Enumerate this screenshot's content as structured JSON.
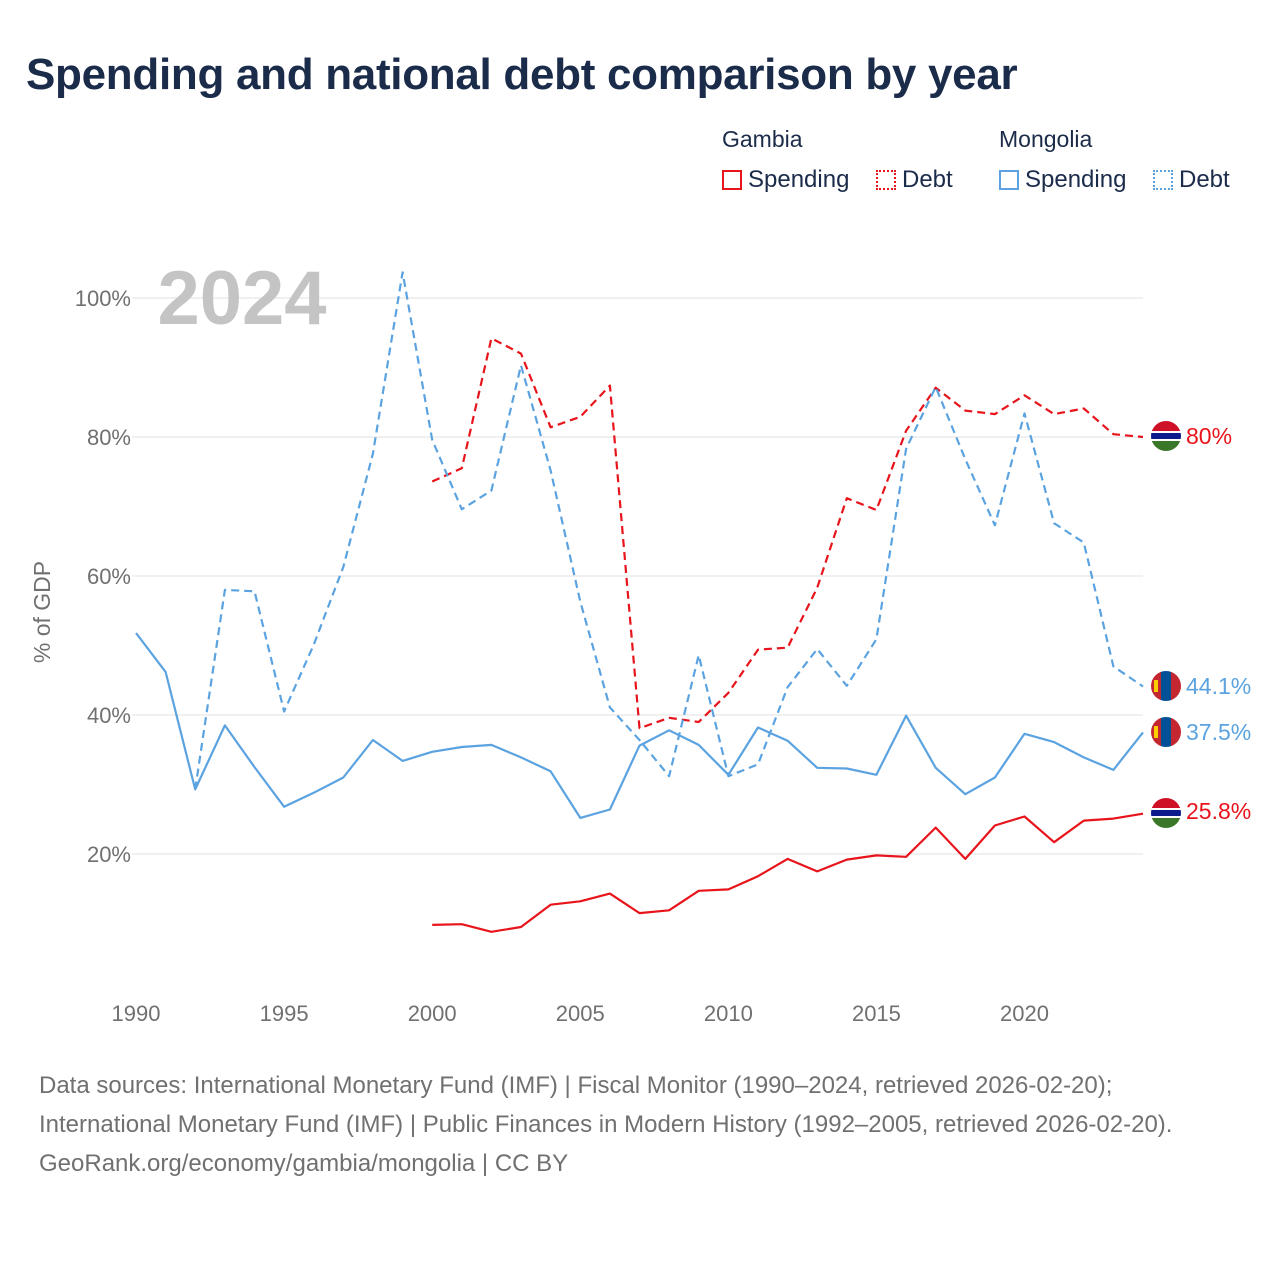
{
  "title": "Spending and national debt comparison by year",
  "legend": {
    "groups": [
      {
        "name": "Gambia",
        "items": [
          {
            "label": "Spending",
            "style": "solid",
            "color": "#e8141b"
          },
          {
            "label": "Debt",
            "style": "dotted",
            "color": "#e8141b"
          }
        ]
      },
      {
        "name": "Mongolia",
        "items": [
          {
            "label": "Spending",
            "style": "solid",
            "color": "#5ba3e0"
          },
          {
            "label": "Debt",
            "style": "dotted",
            "color": "#5ba3e0"
          }
        ]
      }
    ]
  },
  "colors": {
    "gambia": "#e8141b",
    "mongolia": "#5ba3e0",
    "grid": "#e6e6e6",
    "axis_text": "#707070",
    "year_watermark": "#c4c4c4"
  },
  "chart_data": {
    "type": "line",
    "year_label": "2024",
    "ylabel": "% of GDP",
    "xlim": [
      1990,
      2024
    ],
    "ylim": [
      0,
      105
    ],
    "yticks": [
      20,
      40,
      60,
      80,
      100
    ],
    "ytick_labels": [
      "20%",
      "40%",
      "60%",
      "80%",
      "100%"
    ],
    "xticks": [
      1990,
      1995,
      2000,
      2005,
      2010,
      2015,
      2020
    ],
    "xtick_labels": [
      "1990",
      "1995",
      "2000",
      "2005",
      "2010",
      "2015",
      "2020"
    ],
    "series": [
      {
        "name": "Gambia Spending",
        "country": "Gambia",
        "metric": "Spending",
        "color": "#e8141b",
        "dashed": false,
        "end_label": "25.8%",
        "x": [
          2000,
          2001,
          2002,
          2003,
          2004,
          2005,
          2006,
          2007,
          2008,
          2009,
          2010,
          2011,
          2012,
          2013,
          2014,
          2015,
          2016,
          2017,
          2018,
          2019,
          2020,
          2021,
          2022,
          2023,
          2024
        ],
        "values": [
          9.8,
          9.9,
          8.8,
          9.5,
          12.7,
          13.2,
          14.3,
          11.5,
          11.9,
          14.7,
          14.9,
          16.8,
          19.3,
          17.5,
          19.2,
          19.8,
          19.6,
          23.8,
          19.3,
          24.1,
          25.4,
          21.7,
          24.8,
          25.1,
          25.8
        ]
      },
      {
        "name": "Gambia Debt",
        "country": "Gambia",
        "metric": "Debt",
        "color": "#e8141b",
        "dashed": true,
        "end_label": "80%",
        "x": [
          2000,
          2001,
          2002,
          2003,
          2004,
          2005,
          2006,
          2007,
          2008,
          2009,
          2010,
          2011,
          2012,
          2013,
          2014,
          2015,
          2016,
          2017,
          2018,
          2019,
          2020,
          2021,
          2022,
          2023,
          2024
        ],
        "values": [
          73.6,
          75.5,
          94.2,
          92.0,
          81.4,
          82.9,
          87.4,
          38.1,
          39.6,
          39.0,
          43.2,
          49.4,
          49.7,
          58.3,
          71.2,
          69.5,
          80.9,
          87.1,
          83.8,
          83.3,
          86.0,
          83.3,
          84.1,
          80.4,
          80.0
        ]
      },
      {
        "name": "Mongolia Spending",
        "country": "Mongolia",
        "metric": "Spending",
        "color": "#5ba3e0",
        "dashed": false,
        "end_label": "37.5%",
        "x": [
          1990,
          1991,
          1992,
          1993,
          1994,
          1995,
          1996,
          1997,
          1998,
          1999,
          2000,
          2001,
          2002,
          2003,
          2004,
          2005,
          2006,
          2007,
          2008,
          2009,
          2010,
          2011,
          2012,
          2013,
          2014,
          2015,
          2016,
          2017,
          2018,
          2019,
          2020,
          2021,
          2022,
          2023,
          2024
        ],
        "values": [
          51.8,
          46.2,
          29.3,
          38.5,
          32.5,
          26.8,
          28.8,
          31.0,
          36.4,
          33.4,
          34.7,
          35.4,
          35.7,
          33.9,
          31.9,
          25.2,
          26.4,
          35.6,
          37.8,
          35.7,
          31.4,
          38.2,
          36.3,
          32.4,
          32.3,
          31.4,
          39.9,
          32.4,
          28.6,
          31.0,
          37.3,
          36.1,
          33.9,
          32.1,
          37.5
        ]
      },
      {
        "name": "Mongolia Debt",
        "country": "Mongolia",
        "metric": "Debt",
        "color": "#5ba3e0",
        "dashed": true,
        "end_label": "44.1%",
        "x": [
          1992,
          1993,
          1994,
          1995,
          1996,
          1997,
          1998,
          1999,
          2000,
          2001,
          2002,
          2003,
          2004,
          2005,
          2006,
          2007,
          2008,
          2009,
          2010,
          2011,
          2012,
          2013,
          2014,
          2015,
          2016,
          2017,
          2018,
          2019,
          2020,
          2021,
          2022,
          2023,
          2024
        ],
        "values": [
          29.3,
          58.0,
          57.8,
          40.5,
          50.1,
          61.3,
          77.6,
          103.7,
          79.6,
          69.6,
          72.3,
          90.3,
          75.2,
          56.3,
          41.1,
          36.4,
          31.2,
          48.6,
          31.2,
          32.9,
          44.0,
          49.5,
          44.2,
          50.9,
          78.3,
          87.2,
          76.8,
          67.3,
          83.4,
          67.6,
          64.8,
          47.0,
          44.1
        ]
      }
    ]
  },
  "footer": {
    "sources": "Data sources: International Monetary Fund (IMF) | Fiscal Monitor (1990–2024, retrieved 2026-02-20); International Monetary Fund (IMF) | Public Finances in Modern History (1992–2005, retrieved 2026-02-20).",
    "credit": "GeoRank.org/economy/gambia/mongolia | CC BY"
  }
}
